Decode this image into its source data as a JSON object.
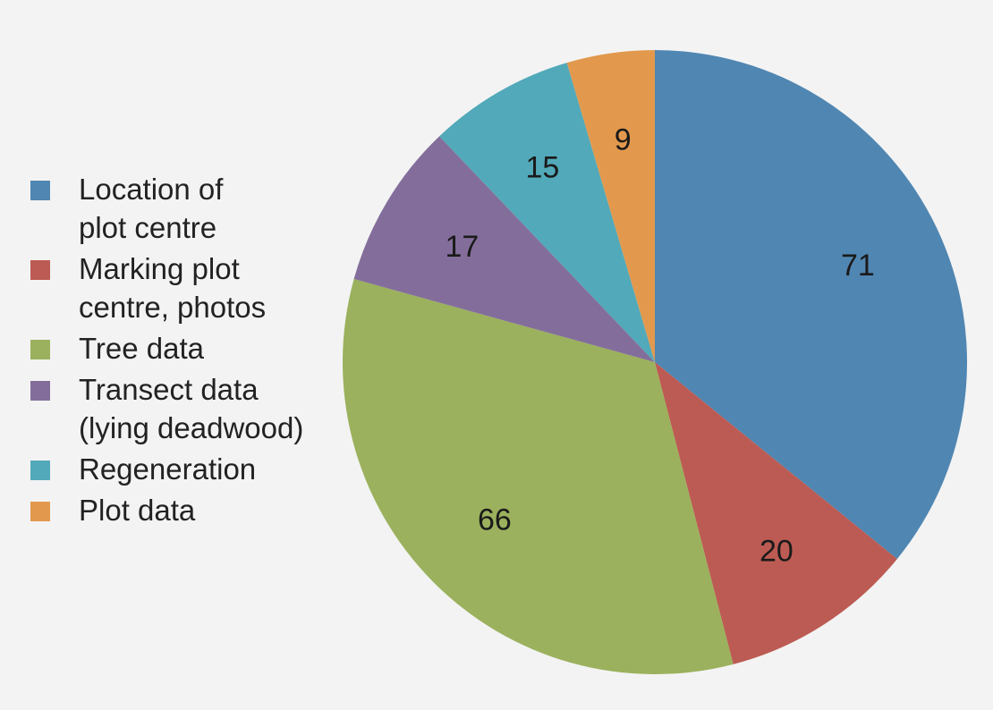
{
  "chart_data": {
    "type": "pie",
    "title": "",
    "start_angle_deg": 0,
    "direction": "clockwise",
    "legend_position": "left",
    "slices": [
      {
        "label": "Location of\nplot centre",
        "value": 71,
        "color": "#5086b2"
      },
      {
        "label": "Marking plot\ncentre, photos",
        "value": 20,
        "color": "#bc5b53"
      },
      {
        "label": "Tree data",
        "value": 66,
        "color": "#9bb15d"
      },
      {
        "label": "Transect data\n(lying deadwood)",
        "value": 17,
        "color": "#836e9b"
      },
      {
        "label": "Regeneration",
        "value": 15,
        "color": "#52a9b9"
      },
      {
        "label": "Plot data",
        "value": 9,
        "color": "#e2994d"
      }
    ]
  }
}
